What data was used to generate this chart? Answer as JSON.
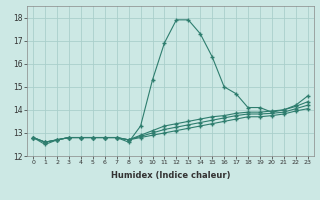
{
  "x": [
    0,
    1,
    2,
    3,
    4,
    5,
    6,
    7,
    8,
    9,
    10,
    11,
    12,
    13,
    14,
    15,
    16,
    17,
    18,
    19,
    20,
    21,
    22,
    23
  ],
  "line1": [
    12.8,
    12.5,
    12.7,
    12.8,
    12.8,
    12.8,
    12.8,
    12.8,
    12.6,
    13.3,
    15.3,
    16.9,
    17.9,
    17.9,
    17.3,
    16.3,
    15.0,
    14.7,
    14.1,
    14.1,
    13.9,
    14.0,
    14.2,
    14.6
  ],
  "line2": [
    12.8,
    12.6,
    12.7,
    12.8,
    12.8,
    12.8,
    12.8,
    12.8,
    12.7,
    12.9,
    13.1,
    13.3,
    13.4,
    13.5,
    13.6,
    13.7,
    13.75,
    13.85,
    13.9,
    13.9,
    13.95,
    14.0,
    14.15,
    14.35
  ],
  "line3": [
    12.8,
    12.6,
    12.7,
    12.8,
    12.8,
    12.8,
    12.8,
    12.8,
    12.7,
    12.85,
    13.0,
    13.15,
    13.25,
    13.35,
    13.45,
    13.55,
    13.65,
    13.75,
    13.82,
    13.82,
    13.85,
    13.9,
    14.05,
    14.2
  ],
  "line4": [
    12.8,
    12.6,
    12.7,
    12.8,
    12.8,
    12.8,
    12.8,
    12.8,
    12.7,
    12.8,
    12.9,
    13.0,
    13.1,
    13.2,
    13.3,
    13.4,
    13.5,
    13.6,
    13.7,
    13.7,
    13.75,
    13.82,
    13.95,
    14.05
  ],
  "line_color": "#2e7d6e",
  "bg_color": "#cce8e4",
  "grid_color": "#aacfcb",
  "xlabel": "Humidex (Indice chaleur)",
  "ylim": [
    12,
    18.5
  ],
  "xlim": [
    -0.5,
    23.5
  ]
}
